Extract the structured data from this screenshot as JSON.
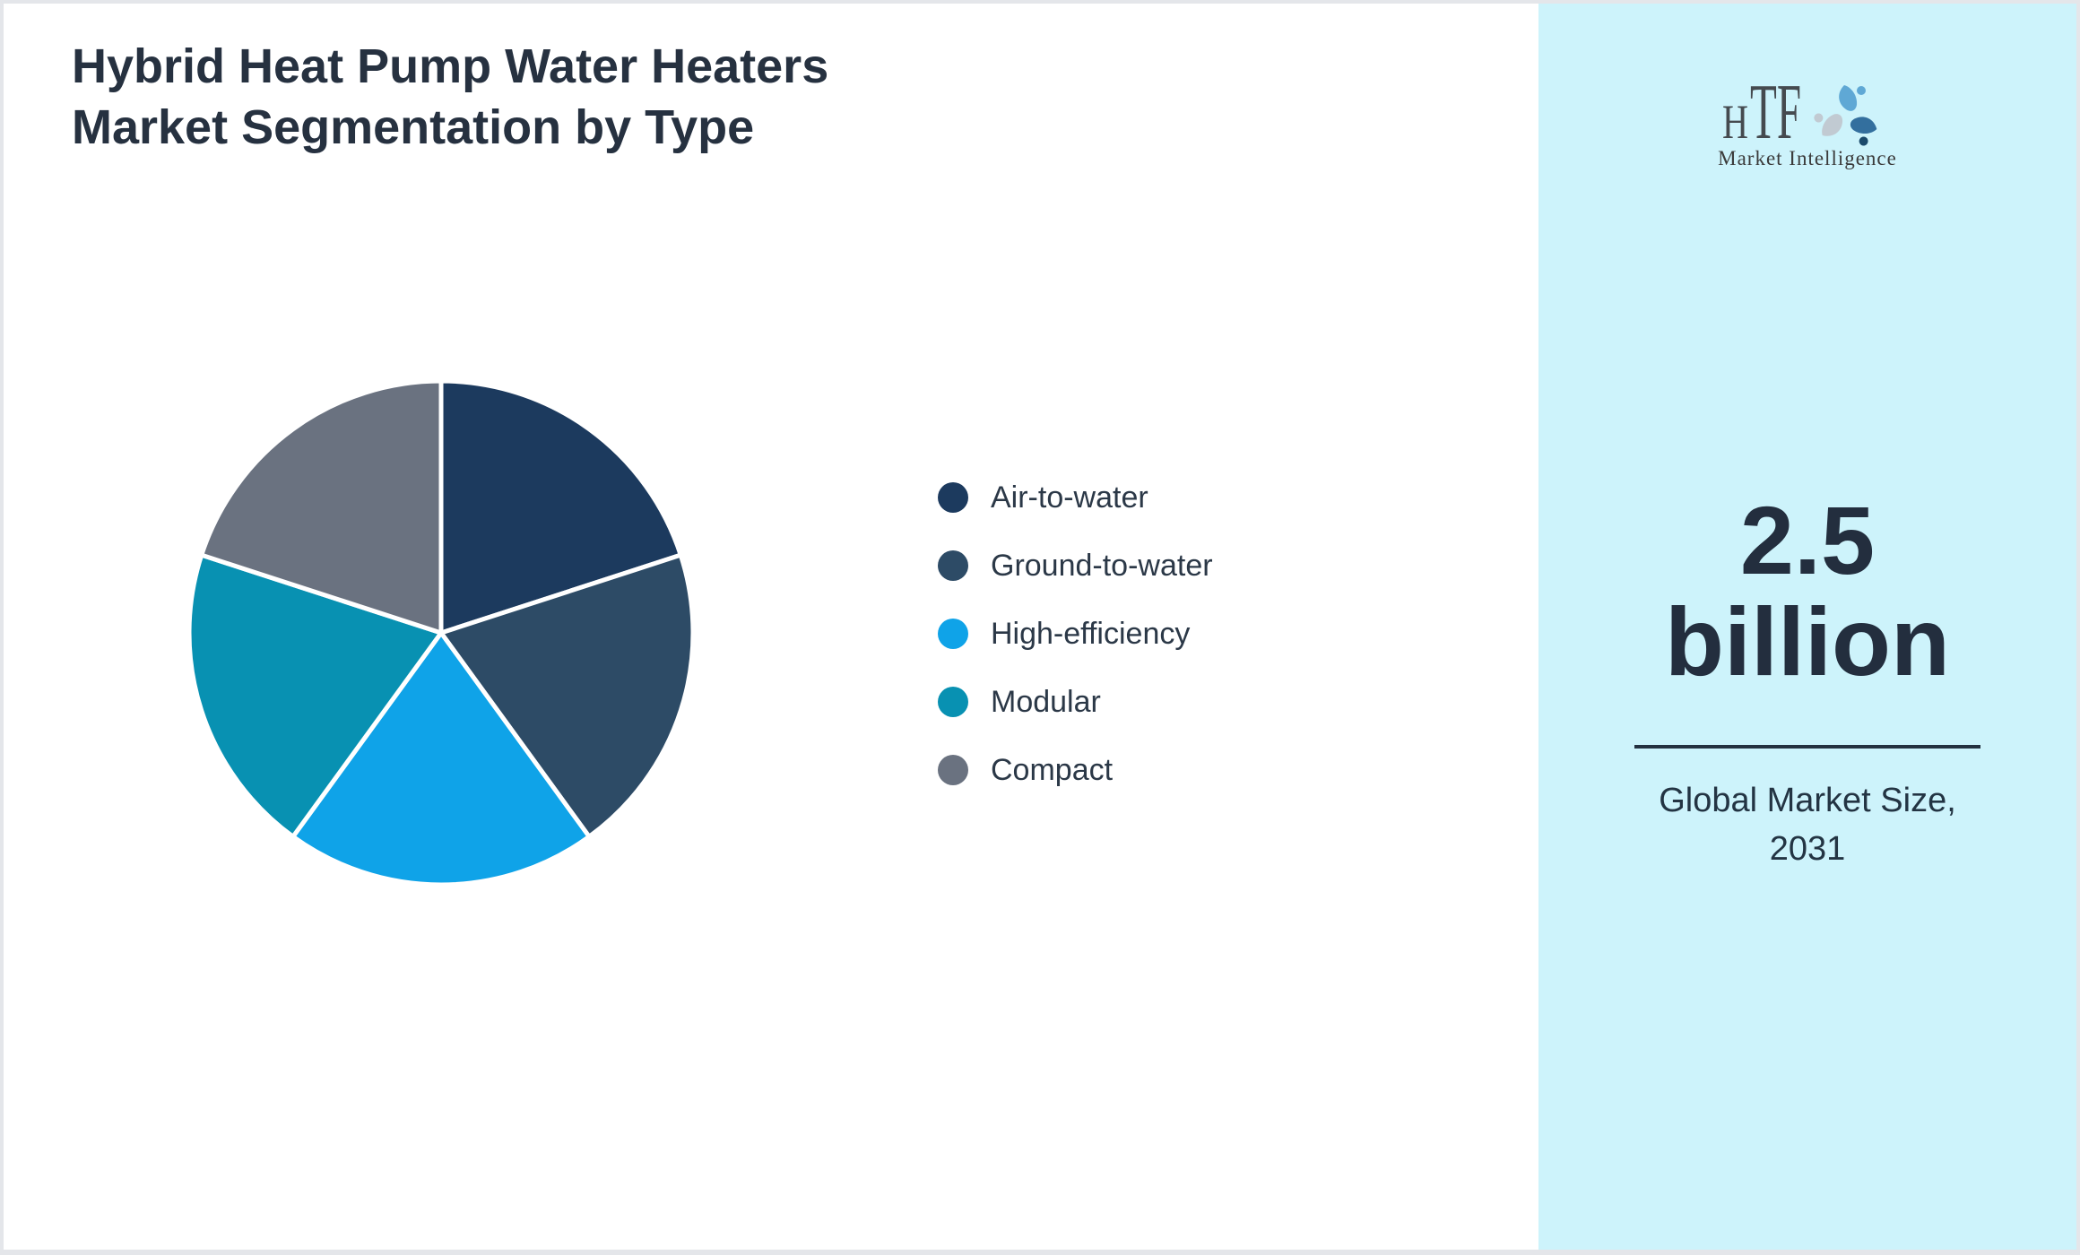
{
  "header": {
    "title_lines": [
      "Hybrid Heat Pump Water Heaters",
      "Market Segmentation by Type"
    ]
  },
  "chart_data": {
    "type": "pie",
    "title": "Hybrid Heat Pump Water Heaters Market Segmentation by Type",
    "categories": [
      "Air-to-water",
      "Ground-to-water",
      "High-efficiency",
      "Modular",
      "Compact"
    ],
    "values": [
      20,
      20,
      20,
      20,
      20
    ],
    "unit": "%",
    "colors": [
      "#1c3a5e",
      "#2d4b66",
      "#0fa3e8",
      "#0891b2",
      "#6a7280"
    ],
    "start_angle_deg": -90,
    "direction": "clockwise",
    "slice_border_color": "#ffffff",
    "labels_shown_on_slices": false,
    "legend_position": "right"
  },
  "sidebar": {
    "background_color": "#cdf3fb",
    "logo": {
      "text": "HTF",
      "text_parts": [
        "H",
        "TF"
      ],
      "subtext": "Market Intelligence",
      "swirl_colors": [
        "#5fa8d5",
        "#336f9e",
        "#c1cad2"
      ],
      "swirl_dot_colors": [
        "#5fa8d5",
        "#1b4a6b",
        "#c1cad2"
      ]
    },
    "stat": {
      "value_lines": [
        "2.5",
        "billion"
      ],
      "label_lines": [
        "Global Market Size,",
        "2031"
      ],
      "divider_color": "#233140"
    }
  },
  "colors": {
    "title_text": "#263140",
    "legend_text": "#2b3847",
    "stat_text": "#232e3e",
    "page_border": "#e4e6ea"
  }
}
